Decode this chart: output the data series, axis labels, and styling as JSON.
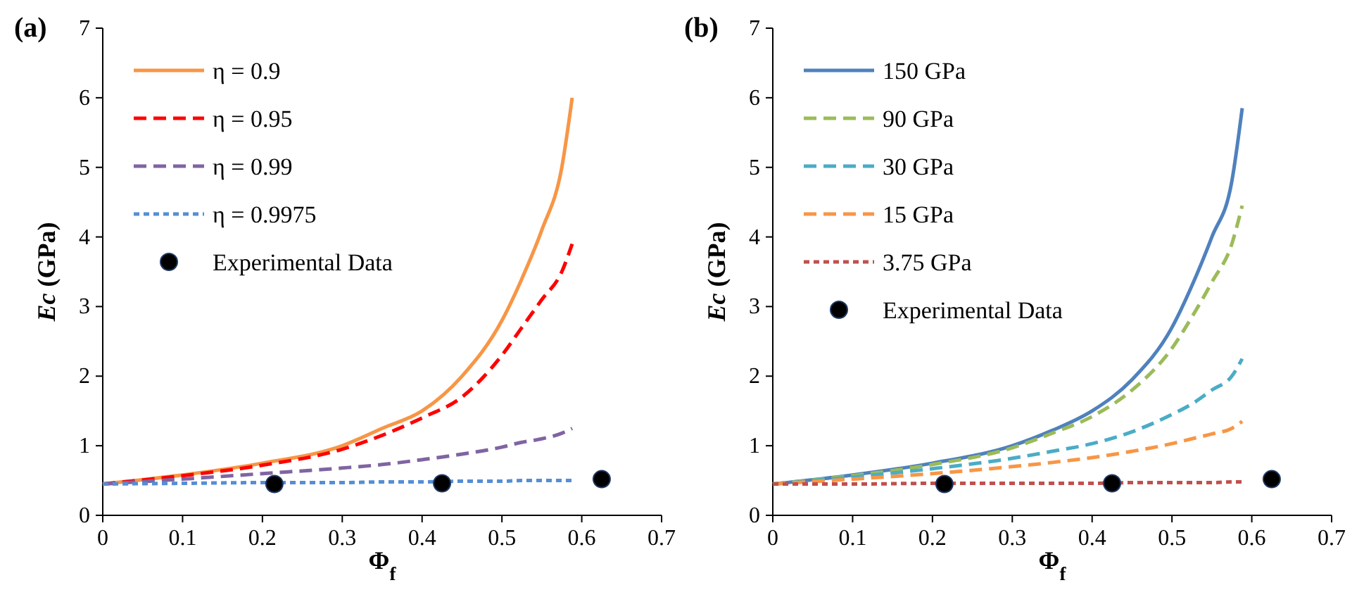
{
  "chart_data": [
    {
      "type": "line",
      "title": "(a)",
      "xlabel": "Φ$_{f}$",
      "ylabel": "Ec (GPa)",
      "xlim": [
        0,
        0.7
      ],
      "ylim": [
        0,
        7
      ],
      "xticks": [
        0,
        0.1,
        0.2,
        0.3,
        0.4,
        0.5,
        0.6,
        0.7
      ],
      "yticks": [
        0,
        1,
        2,
        3,
        4,
        5,
        6,
        7
      ],
      "grid": false,
      "legend": "top left",
      "marker": "none",
      "x": [
        0,
        0.1,
        0.2,
        0.3,
        0.35,
        0.4,
        0.45,
        0.5,
        0.525,
        0.55,
        0.575,
        0.588
      ],
      "series": [
        {
          "name": "η = 0.9",
          "color": "#f79646",
          "line_style": "solid",
          "values": [
            0.45,
            0.58,
            0.75,
            1.0,
            1.25,
            1.5,
            2.0,
            2.8,
            3.4,
            4.1,
            5.0,
            6.0
          ]
        },
        {
          "name": "η = 0.95",
          "color": "#ff0000",
          "line_style": "dashed",
          "values": [
            0.45,
            0.57,
            0.72,
            0.95,
            1.15,
            1.4,
            1.7,
            2.3,
            2.7,
            3.1,
            3.5,
            3.9
          ]
        },
        {
          "name": "η = 0.99",
          "color": "#8064a2",
          "line_style": "dashed",
          "values": [
            0.45,
            0.52,
            0.6,
            0.68,
            0.73,
            0.8,
            0.88,
            0.98,
            1.05,
            1.1,
            1.18,
            1.25
          ]
        },
        {
          "name": "η = 0.9975",
          "color": "#558ed5",
          "line_style": "dotted",
          "values": [
            0.45,
            0.46,
            0.47,
            0.47,
            0.48,
            0.48,
            0.49,
            0.49,
            0.5,
            0.5,
            0.5,
            0.5
          ]
        },
        {
          "name": "Experimental Data",
          "type": "scatter",
          "marker": "circle",
          "color": "#000000",
          "x": [
            0.215,
            0.425,
            0.625
          ],
          "values": [
            0.45,
            0.46,
            0.52
          ]
        }
      ]
    },
    {
      "type": "line",
      "title": "(b)",
      "xlabel": "Φ$_{f}$",
      "ylabel": "Ec (GPa)",
      "xlim": [
        0,
        0.7
      ],
      "ylim": [
        0,
        7
      ],
      "xticks": [
        0,
        0.1,
        0.2,
        0.3,
        0.4,
        0.5,
        0.6,
        0.7
      ],
      "yticks": [
        0,
        1,
        2,
        3,
        4,
        5,
        6,
        7
      ],
      "grid": false,
      "legend": "top left",
      "marker": "none",
      "x": [
        0,
        0.1,
        0.2,
        0.3,
        0.35,
        0.4,
        0.45,
        0.5,
        0.525,
        0.55,
        0.575,
        0.588
      ],
      "series": [
        {
          "name": "150 GPa",
          "color": "#4f81bd",
          "line_style": "solid",
          "values": [
            0.45,
            0.58,
            0.75,
            1.0,
            1.22,
            1.5,
            1.95,
            2.7,
            3.3,
            4.0,
            4.8,
            5.85
          ]
        },
        {
          "name": "90 GPa",
          "color": "#9bbb59",
          "line_style": "dashed",
          "values": [
            0.45,
            0.57,
            0.73,
            0.97,
            1.18,
            1.42,
            1.8,
            2.4,
            2.85,
            3.35,
            3.9,
            4.45
          ]
        },
        {
          "name": "30 GPa",
          "color": "#4bacc6",
          "line_style": "dashed",
          "values": [
            0.45,
            0.55,
            0.67,
            0.82,
            0.92,
            1.03,
            1.2,
            1.45,
            1.6,
            1.8,
            2.0,
            2.25
          ]
        },
        {
          "name": "15 GPa",
          "color": "#f79646",
          "line_style": "dashed",
          "values": [
            0.45,
            0.52,
            0.6,
            0.7,
            0.76,
            0.83,
            0.92,
            1.03,
            1.1,
            1.17,
            1.25,
            1.35
          ]
        },
        {
          "name": "3.75 GPa",
          "color": "#c0504d",
          "line_style": "dotted",
          "values": [
            0.45,
            0.45,
            0.46,
            0.46,
            0.46,
            0.46,
            0.47,
            0.47,
            0.47,
            0.47,
            0.48,
            0.48
          ]
        },
        {
          "name": "Experimental Data",
          "type": "scatter",
          "marker": "circle",
          "color": "#000000",
          "x": [
            0.215,
            0.425,
            0.625
          ],
          "values": [
            0.45,
            0.46,
            0.52
          ]
        }
      ]
    }
  ]
}
